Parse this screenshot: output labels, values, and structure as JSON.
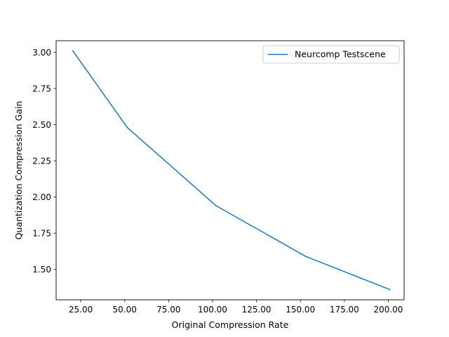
{
  "chart_data": {
    "type": "line",
    "title": "",
    "xlabel": "Original Compression Rate",
    "ylabel": "Quantization Compression Gain",
    "xlim": [
      11.0,
      209.0
    ],
    "ylim": [
      1.29,
      3.08
    ],
    "xticks": [
      25,
      50,
      75,
      100,
      125,
      150,
      175,
      200
    ],
    "xtick_labels": [
      "25.00",
      "50.00",
      "75.00",
      "100.00",
      "125.00",
      "150.00",
      "175.00",
      "200.00"
    ],
    "yticks": [
      1.5,
      1.75,
      2.0,
      2.25,
      2.5,
      2.75,
      3.0
    ],
    "ytick_labels": [
      "1.50",
      "1.75",
      "2.00",
      "2.25",
      "2.50",
      "2.75",
      "3.00"
    ],
    "grid": false,
    "legend_position": "upper-right",
    "series": [
      {
        "name": "Neurcomp Testscene",
        "color": "#1f77b4",
        "x": [
          20.5,
          51.5,
          102.0,
          153.0,
          201.0
        ],
        "y": [
          3.01,
          2.48,
          1.94,
          1.59,
          1.36
        ]
      }
    ]
  }
}
